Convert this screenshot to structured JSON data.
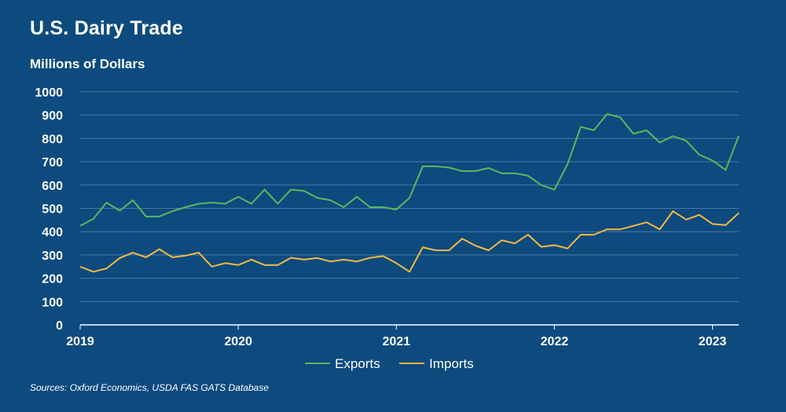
{
  "title": "U.S. Dairy Trade",
  "source": "Sources: Oxford Economics, USDA FAS GATS Database",
  "chart_data": {
    "type": "line",
    "title": "U.S. Dairy Trade",
    "ylabel": "Millions of Dollars",
    "xlabel": "",
    "ylim": [
      0,
      1000
    ],
    "yticks": [
      "0",
      "100",
      "200",
      "300",
      "400",
      "500",
      "600",
      "700",
      "800",
      "900",
      "1000"
    ],
    "xticks": [
      {
        "label": "2019",
        "index": 0
      },
      {
        "label": "2020",
        "index": 12
      },
      {
        "label": "2021",
        "index": 24
      },
      {
        "label": "2022",
        "index": 36
      },
      {
        "label": "2023",
        "index": 48
      }
    ],
    "x_start": "2019-01",
    "x_frequency": "monthly",
    "grid": true,
    "legend": "bottom-center",
    "colors": {
      "Exports": "#5cb85c",
      "Imports": "#f5b942",
      "grid": "#4d7aa6"
    },
    "series": [
      {
        "name": "Exports",
        "values": [
          425,
          455,
          525,
          490,
          535,
          465,
          465,
          488,
          505,
          520,
          525,
          520,
          550,
          520,
          580,
          520,
          580,
          575,
          545,
          535,
          505,
          550,
          505,
          505,
          495,
          545,
          680,
          680,
          675,
          660,
          660,
          673,
          650,
          650,
          640,
          600,
          580,
          690,
          850,
          835,
          905,
          890,
          820,
          835,
          782,
          810,
          790,
          730,
          705,
          665,
          812
        ]
      },
      {
        "name": "Imports",
        "values": [
          250,
          228,
          242,
          287,
          310,
          290,
          325,
          290,
          297,
          310,
          250,
          265,
          257,
          280,
          257,
          257,
          288,
          280,
          287,
          272,
          280,
          272,
          288,
          295,
          265,
          228,
          333,
          320,
          320,
          370,
          340,
          320,
          363,
          350,
          387,
          335,
          342,
          328,
          387,
          387,
          410,
          410,
          425,
          440,
          410,
          488,
          452,
          472,
          433,
          428,
          480
        ]
      }
    ]
  }
}
